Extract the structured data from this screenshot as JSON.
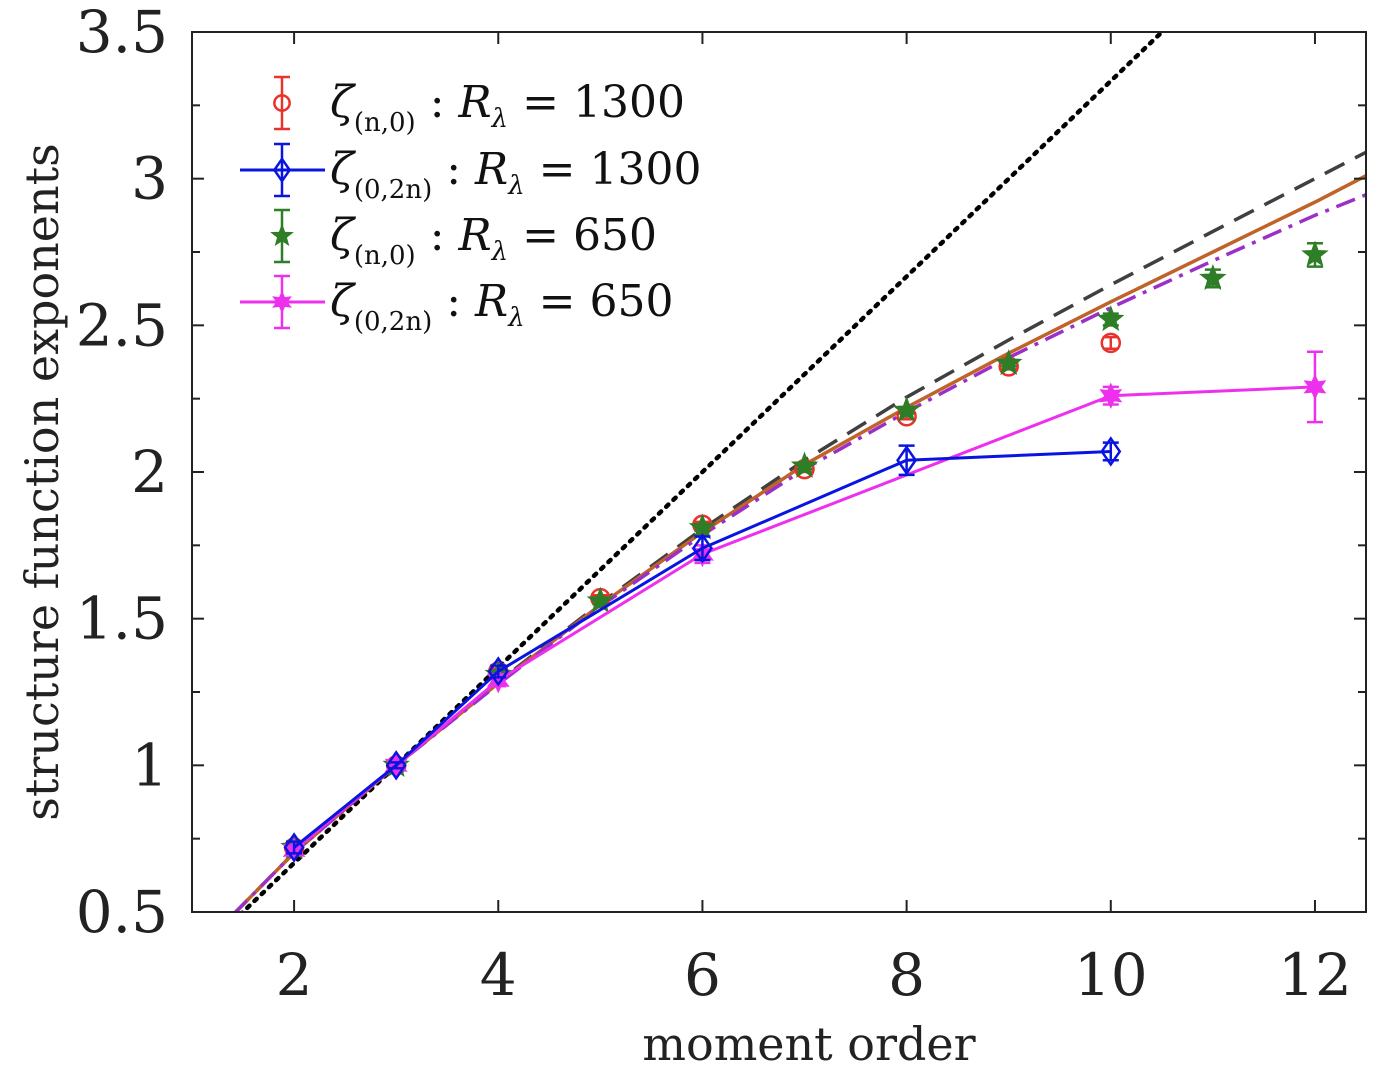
{
  "chart_data": {
    "type": "line",
    "title": "",
    "xlabel": "moment order",
    "ylabel": "structure function exponents",
    "xlim": [
      1.0,
      12.5
    ],
    "ylim": [
      0.5,
      3.5
    ],
    "xticks": [
      2,
      4,
      6,
      8,
      10,
      12
    ],
    "xtick_labels": [
      "2",
      "4",
      "6",
      "8",
      "10",
      "12"
    ],
    "yticks": [
      0.5,
      1,
      1.5,
      2,
      2.5,
      3,
      3.5
    ],
    "ytick_labels": [
      "0.5",
      "1",
      "1.5",
      "2",
      "2.5",
      "3",
      "3.5"
    ],
    "grid": false,
    "legend_position": "top-left",
    "series": [
      {
        "name": "zeta_(n,0) : R_lambda = 1300",
        "legend": {
          "sym": "ζ",
          "sub": "(n,0)",
          "mid": " : ",
          "R": "R",
          "Rsub": "λ",
          "eq": " = ",
          "num": "1300"
        },
        "color": "#e8322b",
        "marker": "circle",
        "line": false,
        "x": [
          2,
          3,
          4,
          5,
          6,
          7,
          8,
          9,
          10
        ],
        "y": [
          0.72,
          1.0,
          1.32,
          1.57,
          1.82,
          2.01,
          2.19,
          2.36,
          2.44
        ],
        "err": [
          0.01,
          0.01,
          0.01,
          0.01,
          0.01,
          0.01,
          0.01,
          0.01,
          0.02
        ]
      },
      {
        "name": "zeta_(0,2n) : R_lambda = 1300",
        "legend": {
          "sym": "ζ",
          "sub": "(0,2n)",
          "mid": " : ",
          "R": "R",
          "Rsub": "λ",
          "eq": " = ",
          "num": "1300"
        },
        "color": "#0a14e0",
        "marker": "diamond",
        "line": true,
        "x": [
          2,
          3,
          4,
          6,
          8,
          10
        ],
        "y": [
          0.72,
          1.0,
          1.32,
          1.74,
          2.04,
          2.07
        ],
        "err": [
          0.02,
          0.01,
          0.02,
          0.04,
          0.05,
          0.03
        ]
      },
      {
        "name": "zeta_(n,0) : R_lambda = 650",
        "legend": {
          "sym": "ζ",
          "sub": "(n,0)",
          "mid": " : ",
          "R": "R",
          "Rsub": "λ",
          "eq": " = ",
          "num": "650"
        },
        "color": "#2e7d27",
        "marker": "star",
        "line": false,
        "x": [
          2,
          3,
          4,
          5,
          6,
          7,
          8,
          9,
          10,
          11,
          12
        ],
        "y": [
          0.72,
          1.0,
          1.31,
          1.56,
          1.81,
          2.02,
          2.21,
          2.37,
          2.52,
          2.66,
          2.74
        ],
        "err": [
          0.01,
          0.01,
          0.01,
          0.01,
          0.01,
          0.01,
          0.01,
          0.01,
          0.02,
          0.03,
          0.04
        ]
      },
      {
        "name": "zeta_(0,2n) : R_lambda = 650",
        "legend": {
          "sym": "ζ",
          "sub": "(0,2n)",
          "mid": " : ",
          "R": "R",
          "Rsub": "λ",
          "eq": " = ",
          "num": "650"
        },
        "color": "#ee30ee",
        "marker": "hexstar",
        "line": true,
        "x": [
          2,
          3,
          4,
          6,
          10,
          12
        ],
        "y": [
          0.71,
          1.0,
          1.29,
          1.72,
          2.26,
          2.29
        ],
        "err": [
          0.01,
          0.01,
          0.02,
          0.03,
          0.03,
          0.12
        ]
      }
    ],
    "reference_lines": [
      {
        "name": "K41 n/3",
        "style": "dotted",
        "color": "#000000",
        "x": [
          1.4,
          10.6
        ],
        "y": [
          0.467,
          3.533
        ]
      },
      {
        "name": "model dashed",
        "style": "dashed",
        "color": "#404040",
        "x": [
          1.4,
          2,
          3,
          4,
          5,
          6,
          7,
          8,
          9,
          10,
          11,
          12,
          12.5
        ],
        "y": [
          0.49,
          0.702,
          1.0,
          1.285,
          1.552,
          1.806,
          2.04,
          2.255,
          2.45,
          2.638,
          2.82,
          3.0,
          3.09
        ]
      },
      {
        "name": "model solid",
        "style": "solid",
        "color": "#c0632a",
        "x": [
          1.4,
          2,
          3,
          4,
          5,
          6,
          7,
          8,
          9,
          10,
          11,
          12,
          12.5
        ],
        "y": [
          0.49,
          0.702,
          1.0,
          1.28,
          1.547,
          1.795,
          2.025,
          2.22,
          2.405,
          2.58,
          2.75,
          2.92,
          3.01
        ]
      },
      {
        "name": "model dash-dot",
        "style": "dashdot",
        "color": "#9b30c8",
        "x": [
          1.4,
          2,
          3,
          4,
          5,
          6,
          7,
          8,
          9,
          10,
          11,
          12,
          12.5
        ],
        "y": [
          0.49,
          0.702,
          1.0,
          1.277,
          1.542,
          1.785,
          2.01,
          2.205,
          2.39,
          2.56,
          2.72,
          2.875,
          2.945
        ]
      }
    ]
  }
}
